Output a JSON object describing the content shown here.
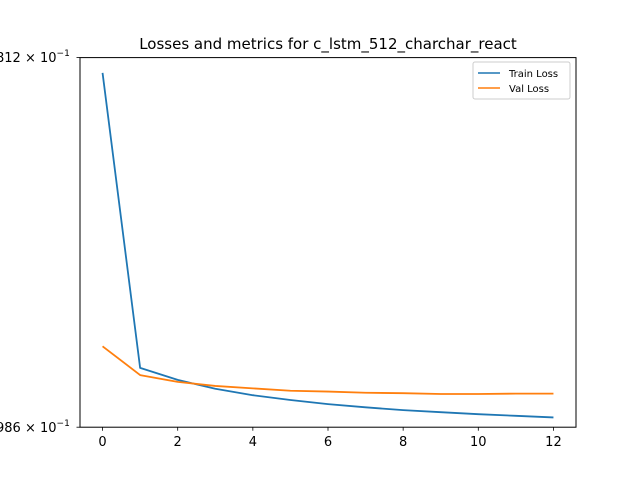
{
  "chart_data": {
    "type": "line",
    "title": "Losses and metrics for c_lstm_512_charchar_react",
    "xlabel": "",
    "ylabel": "",
    "xlim": [
      -0.6,
      12.6
    ],
    "ylim": [
      0.986,
      1.0812
    ],
    "y_scale": "log",
    "xticks": [
      0,
      2,
      4,
      6,
      8,
      10,
      12
    ],
    "xtick_labels": [
      "0",
      "2",
      "4",
      "6",
      "8",
      "10",
      "12"
    ],
    "ytick_labels": {
      "top": {
        "prefix": "812",
        "base": "10",
        "exp": "−1"
      },
      "bottom": {
        "prefix": "986",
        "base": "10",
        "exp": "−1"
      }
    },
    "grid": false,
    "legend_position": "top-right",
    "series": [
      {
        "name": "Train Loss",
        "color": "#1f77b4",
        "x": [
          0,
          1,
          2,
          3,
          4,
          5,
          6,
          7,
          8,
          9,
          10,
          11,
          12
        ],
        "values": [
          1.0771,
          1.0007,
          0.9977,
          0.9955,
          0.9939,
          0.9927,
          0.9917,
          0.9909,
          0.9902,
          0.9897,
          0.9892,
          0.9888,
          0.9884
        ]
      },
      {
        "name": "Val Loss",
        "color": "#ff7f0e",
        "x": [
          0,
          1,
          2,
          3,
          4,
          5,
          6,
          7,
          8,
          9,
          10,
          11,
          12
        ],
        "values": [
          1.0061,
          0.9989,
          0.9972,
          0.9962,
          0.9956,
          0.995,
          0.9948,
          0.9945,
          0.9944,
          0.9942,
          0.9942,
          0.9943,
          0.9943
        ]
      }
    ]
  }
}
